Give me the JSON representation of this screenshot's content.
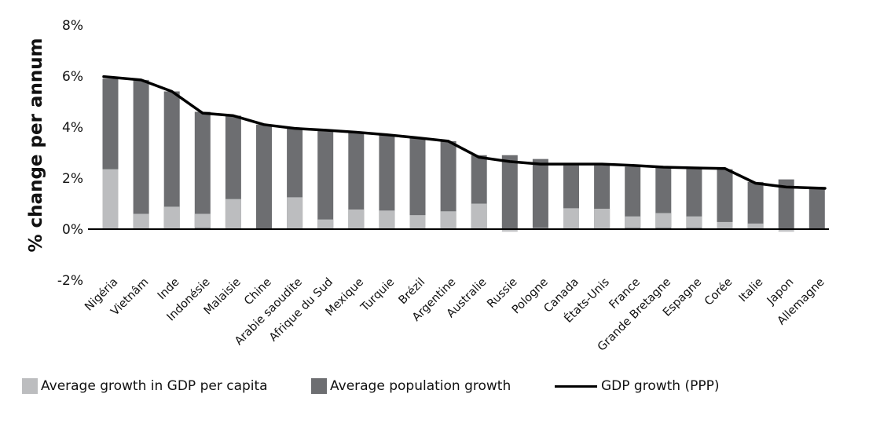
{
  "chart_data": {
    "type": "bar",
    "stacked": true,
    "title": "",
    "xlabel": "",
    "ylabel": "% change per annum",
    "ylim": [
      -2,
      8
    ],
    "yticks": [
      8,
      6,
      4,
      2,
      0,
      -2
    ],
    "ytick_labels": [
      "8%",
      "6%",
      "4%",
      "2%",
      "0%",
      "-2%"
    ],
    "grid": false,
    "legend_position": "bottom",
    "categories": [
      "Nigéria",
      "Vietnâm",
      "Inde",
      "Indonésie",
      "Malaisie",
      "Chine",
      "Arabie saoudite",
      "Afrique du Sud",
      "Mexique",
      "Turquie",
      "Brézil",
      "Argentine",
      "Australie",
      "Russie",
      "Pologne",
      "Canada",
      "États-Unis",
      "France",
      "Grande Bretagne",
      "Espagne",
      "Corée",
      "Italie",
      "Japon",
      "Allemagne"
    ],
    "series": [
      {
        "name": "Average growth in GDP per capita",
        "kind": "bar",
        "color": "#bcbdbf",
        "values": [
          2.35,
          0.6,
          0.88,
          0.6,
          1.18,
          0.0,
          1.25,
          0.38,
          0.77,
          0.73,
          0.55,
          0.7,
          1.0,
          -0.1,
          0.05,
          0.82,
          0.8,
          0.5,
          0.63,
          0.5,
          0.28,
          0.22,
          -0.1,
          0.0
        ]
      },
      {
        "name": "Average population growth",
        "kind": "bar",
        "color": "#6d6e71",
        "values": [
          3.55,
          5.25,
          4.52,
          4.0,
          3.27,
          4.1,
          2.7,
          3.52,
          3.03,
          2.97,
          3.02,
          2.75,
          1.9,
          2.9,
          2.7,
          1.68,
          1.7,
          1.95,
          1.77,
          1.85,
          2.07,
          1.63,
          1.95,
          1.6
        ]
      },
      {
        "name": "GDP growth (PPP)",
        "kind": "line",
        "color": "#000000",
        "values": [
          5.98,
          5.85,
          5.4,
          4.55,
          4.45,
          4.1,
          3.95,
          3.88,
          3.8,
          3.7,
          3.58,
          3.45,
          2.82,
          2.65,
          2.55,
          2.55,
          2.55,
          2.5,
          2.43,
          2.4,
          2.38,
          1.8,
          1.65,
          1.6
        ]
      }
    ]
  },
  "legend": {
    "items": [
      {
        "label": "Average growth in GDP per capita",
        "color": "#bcbdbf"
      },
      {
        "label": "Average population growth",
        "color": "#6d6e71"
      },
      {
        "label": "GDP growth (PPP)",
        "color": "#000000"
      }
    ]
  }
}
